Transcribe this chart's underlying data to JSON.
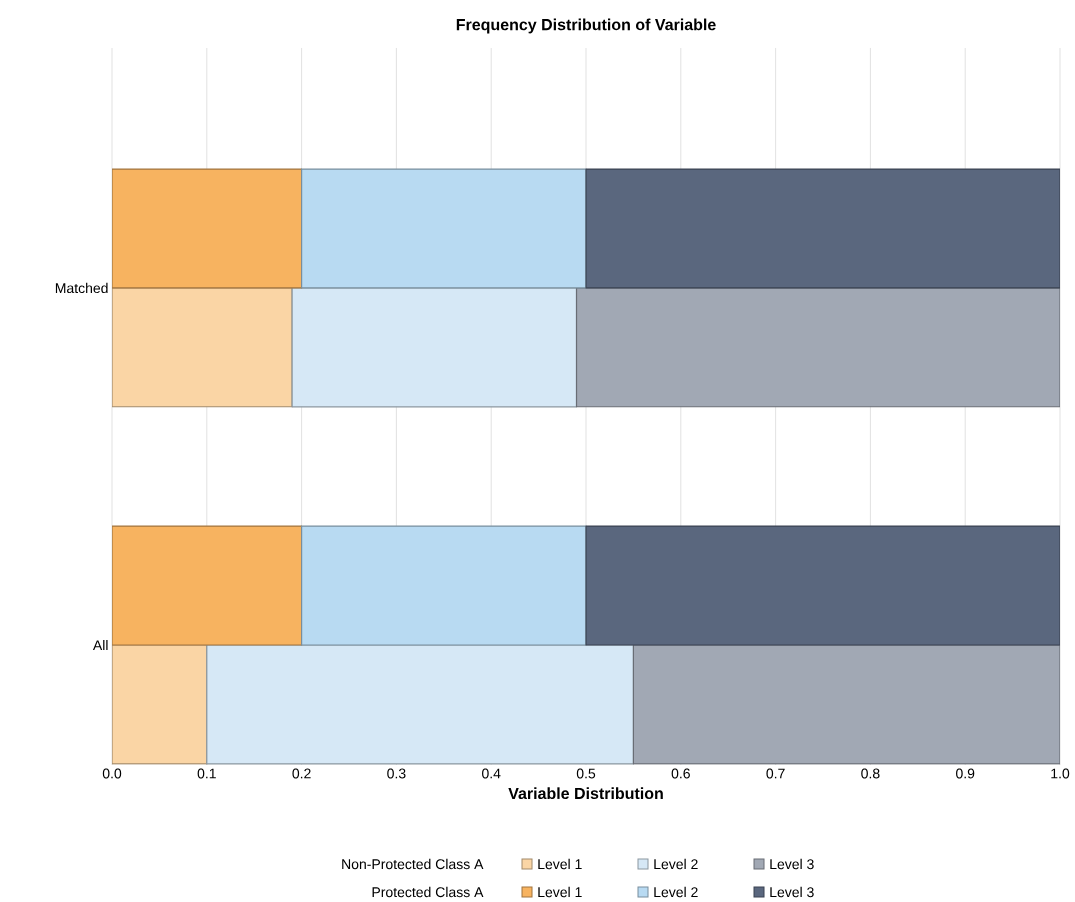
{
  "chart_data": {
    "type": "bar",
    "orientation": "horizontal",
    "title": "Frequency Distribution of Variable",
    "xlabel": "Variable Distribution",
    "categories": [
      "Matched",
      "All"
    ],
    "xlim": [
      0,
      1
    ],
    "xticks": [
      {
        "value": 0,
        "label": "0.0"
      },
      {
        "value": 0.1,
        "label": "0.1"
      },
      {
        "value": 0.2,
        "label": "0.2"
      },
      {
        "value": 0.3,
        "label": "0.3"
      },
      {
        "value": 0.4,
        "label": "0.4"
      },
      {
        "value": 0.5,
        "label": "0.5"
      },
      {
        "value": 0.6,
        "label": "0.6"
      },
      {
        "value": 0.7,
        "label": "0.7"
      },
      {
        "value": 0.8,
        "label": "0.8"
      },
      {
        "value": 0.9,
        "label": "0.9"
      },
      {
        "value": 1,
        "label": "1.0"
      }
    ],
    "grid": "x",
    "legend": "bottom",
    "annotations": [
      "Non-Protected Class A",
      "Protected Class A"
    ],
    "series": [
      {
        "name": "Level 1",
        "color": "#fad5a5",
        "base": [
          0,
          0
        ],
        "values": [
          0.19,
          0.1
        ]
      },
      {
        "name": "Level 2",
        "color": "#d6e8f6",
        "base": [
          0.19,
          0.1
        ],
        "values": [
          0.3,
          0.45
        ]
      },
      {
        "name": "Level 3",
        "color": "#a1a8b4",
        "base": [
          0.49,
          0.55
        ],
        "values": [
          0.51,
          0.45
        ]
      },
      {
        "name": "Level 1",
        "color": "#f7b360",
        "base": [
          0,
          0
        ],
        "values": [
          0.2,
          0.2
        ]
      },
      {
        "name": "Level 2",
        "color": "#b8daf2",
        "base": [
          0.2,
          0.2
        ],
        "values": [
          0.3,
          0.3
        ]
      },
      {
        "name": "Level 3",
        "color": "#5a677e",
        "base": [
          0.5,
          0.5
        ],
        "values": [
          0.5,
          0.5
        ]
      }
    ]
  }
}
